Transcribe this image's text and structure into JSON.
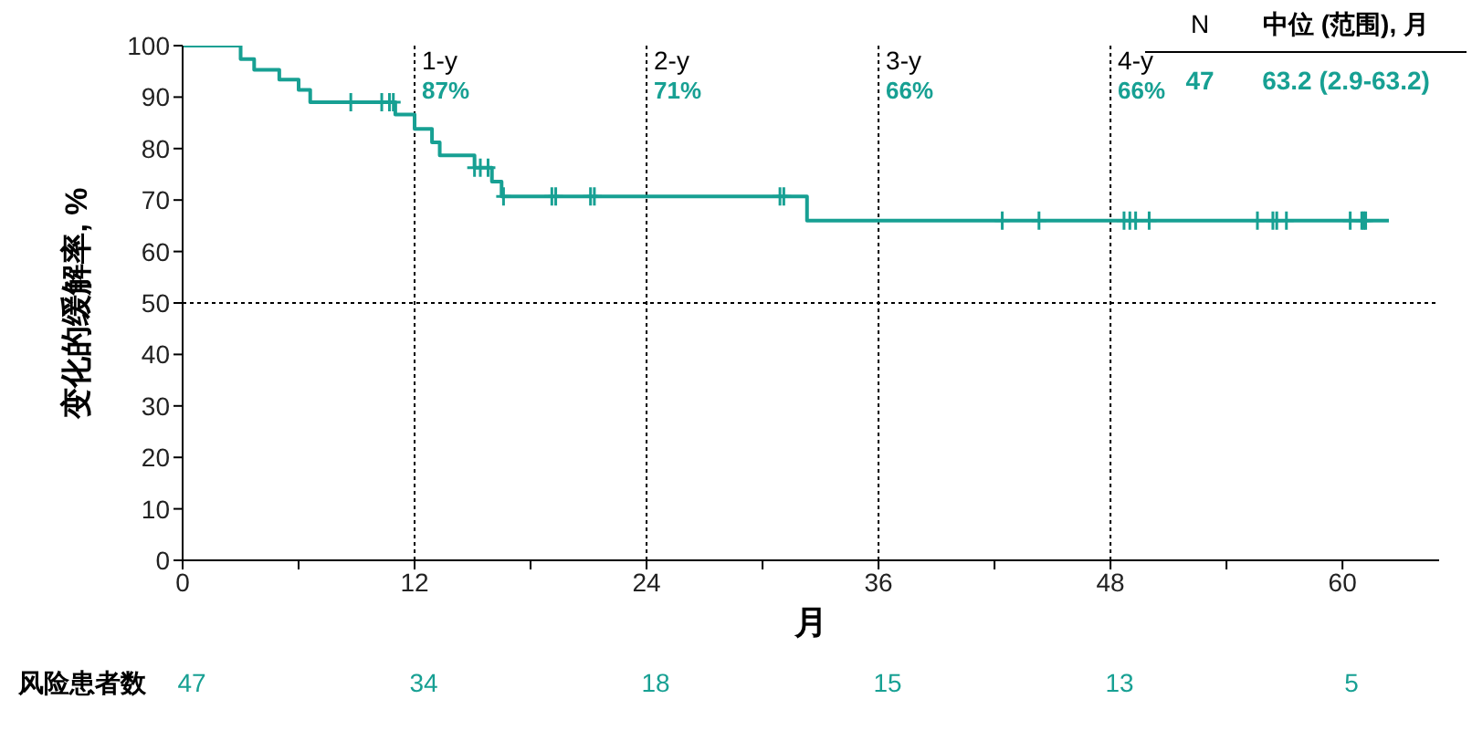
{
  "chart_data": {
    "type": "step",
    "xlabel": "月",
    "ylabel": "变化的缓解率, %",
    "xlim": [
      0,
      65
    ],
    "xticks": [
      0,
      {
        "value": 6,
        "label": null
      },
      12,
      {
        "value": 18,
        "label": null
      },
      24,
      {
        "value": 30,
        "label": null
      },
      36,
      {
        "value": 42,
        "label": null
      },
      48,
      {
        "value": 54,
        "label": null
      },
      60
    ],
    "ylim": [
      0,
      100
    ],
    "yticks": [
      0,
      10,
      20,
      30,
      40,
      50,
      60,
      70,
      80,
      90,
      100
    ],
    "series": [
      {
        "color": "#17a093",
        "x": [
          0,
          3.0,
          3.7,
          5.0,
          6.0,
          6.6,
          11.0,
          12.0,
          12.9,
          13.3,
          15.1,
          16.0,
          16.5,
          32.3,
          62.4
        ],
        "values": [
          100,
          97.4,
          95.3,
          93.4,
          91.4,
          89.0,
          86.6,
          83.8,
          81.2,
          78.7,
          76.3,
          73.6,
          70.7,
          66.0,
          66.0
        ]
      },
      {
        "type": "scatter",
        "marker": "cross",
        "color": "#17a093",
        "x": [
          8.7,
          10.3,
          10.7,
          10.9,
          15.1,
          15.4,
          15.8,
          16.6,
          19.1,
          19.3,
          21.1,
          21.3,
          30.9,
          31.1,
          42.4,
          44.3,
          48.7,
          49.0,
          49.3,
          50.0,
          55.6,
          56.4,
          56.6,
          57.1,
          60.4,
          61.0,
          61.1,
          61.2
        ],
        "values": [
          89.0,
          89.0,
          89.0,
          89.0,
          76.3,
          76.3,
          76.3,
          70.7,
          70.7,
          70.7,
          70.7,
          70.7,
          70.7,
          70.7,
          66.0,
          66.0,
          66.0,
          66.0,
          66.0,
          66.0,
          66.0,
          66.0,
          66.0,
          66.0,
          66.0,
          66.0,
          66.0,
          66.0
        ]
      }
    ],
    "ref_lines": [
      {
        "axis": "x",
        "value": 12,
        "label": "1-y\n87%",
        "line_style": "dotted",
        "color": "#000000"
      },
      {
        "axis": "x",
        "value": 24,
        "label": "2-y\n71%",
        "line_style": "dotted",
        "color": "#000000"
      },
      {
        "axis": "x",
        "value": 36,
        "label": "3-y\n66%",
        "line_style": "dotted",
        "color": "#000000"
      },
      {
        "axis": "x",
        "value": 48,
        "label": "4-y\n66%",
        "line_style": "dotted",
        "color": "#000000"
      },
      {
        "axis": "y",
        "value": 50,
        "line_style": "dotted",
        "color": "#000000"
      }
    ],
    "annotations": [
      "N",
      "中位 (范围), 月",
      "47",
      "63.2 (2.9-63.2)",
      "风险患者数",
      "47",
      "34",
      "18",
      "15",
      "13",
      "5"
    ]
  }
}
